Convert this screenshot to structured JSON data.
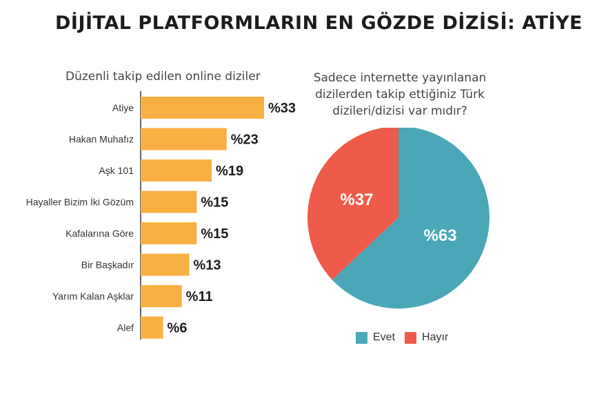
{
  "title": "DİJİTAL PLATFORMLARIN EN GÖZDE DİZİSİ: ATİYE",
  "colors": {
    "bar": "#f9b042",
    "evet": "#4aa7b8",
    "hayir": "#ef5b4a",
    "axis": "#333333"
  },
  "chart_data": [
    {
      "type": "bar",
      "orientation": "horizontal",
      "title": "Düzenli takip edilen online diziler",
      "categories": [
        "Atiye",
        "Hakan Muhafız",
        "Aşk 101",
        "Hayaller Bizim İki Gözüm",
        "Kafalarına Göre",
        "Bir Başkadır",
        "Yarım Kalan Aşklar",
        "Alef"
      ],
      "values": [
        33,
        23,
        19,
        15,
        15,
        13,
        11,
        6
      ],
      "value_labels": [
        "%33",
        "%23",
        "%19",
        "%15",
        "%15",
        "%13",
        "%11",
        "%6"
      ],
      "xlim": [
        0,
        33
      ],
      "grid": false
    },
    {
      "type": "pie",
      "title": "Sadece internette yayınlanan dizilerden takip ettiğiniz Türk dizileri/dizisi var mıdır?",
      "categories": [
        "Evet",
        "Hayır"
      ],
      "values": [
        63,
        37
      ],
      "value_labels": [
        "%63",
        "%37"
      ],
      "legend": "bottom"
    }
  ]
}
